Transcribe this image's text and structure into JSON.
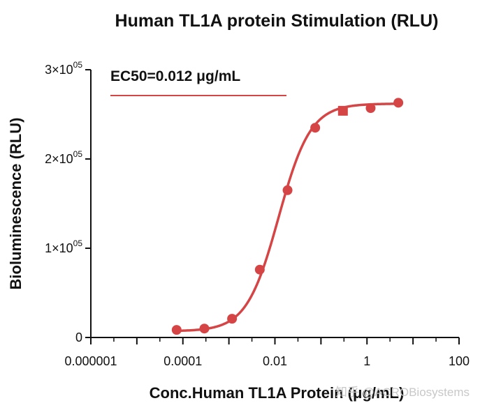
{
  "chart_data": {
    "type": "line",
    "title": "Human TL1A protein Stimulation (RLU)",
    "xlabel": "Conc.Human TL1A Protein (μg/mL)",
    "ylabel": "Bioluminescence (RLU)",
    "x_scale": "log10",
    "xlim": [
      1e-06,
      100
    ],
    "ylim": [
      0,
      300000
    ],
    "x_ticks": [
      {
        "value": 1e-06,
        "label": "0.000001"
      },
      {
        "value": 0.0001,
        "label": "0.0001"
      },
      {
        "value": 0.01,
        "label": "0.01"
      },
      {
        "value": 1,
        "label": "1"
      },
      {
        "value": 100,
        "label": "100"
      }
    ],
    "y_ticks": [
      {
        "value": 0,
        "mantissa": "0",
        "exponent": ""
      },
      {
        "value": 100000,
        "mantissa": "1×10",
        "exponent": "05"
      },
      {
        "value": 200000,
        "mantissa": "2×10",
        "exponent": "05"
      },
      {
        "value": 300000,
        "mantissa": "3×10",
        "exponent": "05"
      }
    ],
    "series": [
      {
        "name": "Human TL1A Protein",
        "color": "#d64545",
        "points": [
          {
            "x": 7.32e-05,
            "y": 8500,
            "marker": "circle"
          },
          {
            "x": 0.000293,
            "y": 10000,
            "marker": "circle"
          },
          {
            "x": 0.00117,
            "y": 21000,
            "marker": "circle"
          },
          {
            "x": 0.00469,
            "y": 76000,
            "marker": "circle"
          },
          {
            "x": 0.0188,
            "y": 165000,
            "marker": "circle"
          },
          {
            "x": 0.075,
            "y": 235000,
            "marker": "circle"
          },
          {
            "x": 0.3,
            "y": 254000,
            "marker": "square"
          },
          {
            "x": 1.2,
            "y": 257000,
            "marker": "circle"
          },
          {
            "x": 4.8,
            "y": 263000,
            "marker": "circle"
          }
        ],
        "fit": {
          "model": "4PL",
          "bottom": 7000,
          "top": 262000,
          "ec50": 0.012,
          "hill": 1.25
        }
      }
    ],
    "annotation": "EC50=0.012 μg/mL",
    "watermark": "知乎 @ACROBiosystems",
    "grid": false,
    "legend": "none"
  }
}
